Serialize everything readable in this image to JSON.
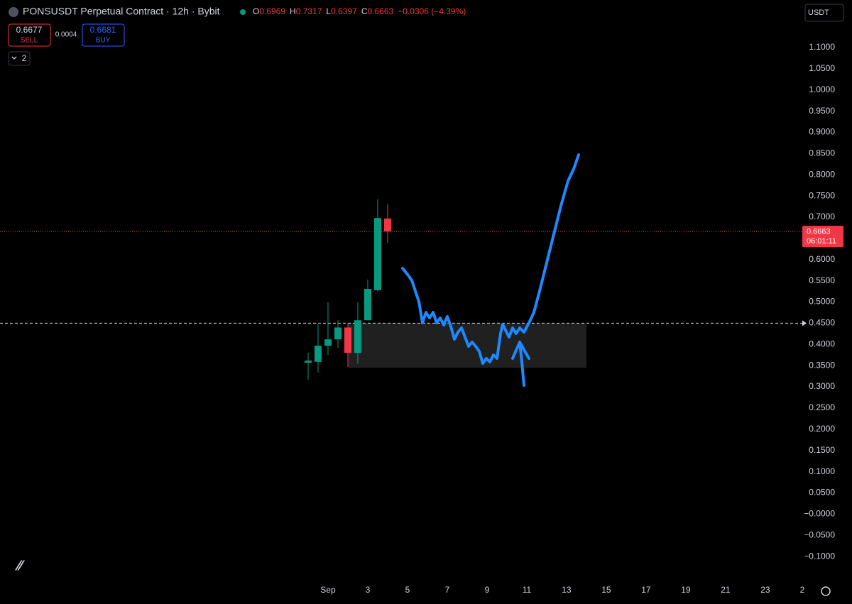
{
  "chart_data": {
    "type": "candlestick",
    "title": "PONSUSDT Perpetual Contract · 12h · Bybit",
    "change": "−0.0306 (−4.39%)",
    "ohlc_letters": [
      "O",
      "H",
      "L",
      "C"
    ],
    "x": [
      0,
      0.5,
      1,
      1.5,
      2,
      2.5,
      3,
      3.5,
      4
    ],
    "open": [
      0.357,
      0.359,
      0.397,
      0.412,
      0.44,
      0.38,
      0.457,
      0.528,
      0.6969
    ],
    "high": [
      0.38,
      0.447,
      0.5,
      0.457,
      0.45,
      0.5,
      0.553,
      0.742,
      0.7317
    ],
    "low": [
      0.317,
      0.334,
      0.375,
      0.392,
      0.347,
      0.355,
      0.457,
      0.524,
      0.6397
    ],
    "close": [
      0.362,
      0.397,
      0.412,
      0.44,
      0.38,
      0.457,
      0.531,
      0.698,
      0.6663
    ],
    "up_color": "#089981",
    "down_color": "#f23645",
    "xlim": [
      -15.5,
      24.86
    ],
    "xticks": [
      {
        "value": 1,
        "label": "Sep"
      },
      3,
      5,
      7,
      9,
      11,
      13,
      15,
      17,
      19,
      21,
      23,
      {
        "value": 25,
        "label": "2"
      }
    ],
    "ylim": [
      -0.16,
      1.212
    ],
    "yticks": [
      {
        "value": 1.1,
        "label": "1.1000"
      },
      {
        "value": 1.05,
        "label": "1.0500"
      },
      {
        "value": 1.0,
        "label": "1.0000"
      },
      {
        "value": 0.95,
        "label": "0.9500"
      },
      {
        "value": 0.9,
        "label": "0.9000"
      },
      {
        "value": 0.85,
        "label": "0.8500"
      },
      {
        "value": 0.8,
        "label": "0.8000"
      },
      {
        "value": 0.75,
        "label": "0.7500"
      },
      {
        "value": 0.7,
        "label": "0.7000"
      },
      {
        "value": 0.6,
        "label": "0.6000"
      },
      {
        "value": 0.55,
        "label": "0.5500"
      },
      {
        "value": 0.5,
        "label": "0.5000"
      },
      {
        "value": 0.45,
        "label": "0.4500"
      },
      {
        "value": 0.4,
        "label": "0.4000"
      },
      {
        "value": 0.35,
        "label": "0.3500"
      },
      {
        "value": 0.3,
        "label": "0.3000"
      },
      {
        "value": 0.25,
        "label": "0.2500"
      },
      {
        "value": 0.2,
        "label": "0.2000"
      },
      {
        "value": 0.15,
        "label": "0.1500"
      },
      {
        "value": 0.1,
        "label": "0.1000"
      },
      {
        "value": 0.05,
        "label": "0.0500"
      },
      {
        "value": 0,
        "label": "−0.0000"
      },
      {
        "value": -0.05,
        "label": "−0.0500"
      },
      {
        "value": -0.1,
        "label": "−0.1000"
      }
    ],
    "hline": 0.45,
    "zone": {
      "x": [
        2,
        14
      ],
      "y": [
        0.345,
        0.45
      ]
    },
    "countdown": "06:01:11",
    "currency": "USDT",
    "trade_panel": {
      "sell_price": "0.6677",
      "sell": "SELL",
      "spread": "0.0004",
      "buy_price": "0.6681",
      "buy": "BUY"
    },
    "layout_count": "2"
  }
}
